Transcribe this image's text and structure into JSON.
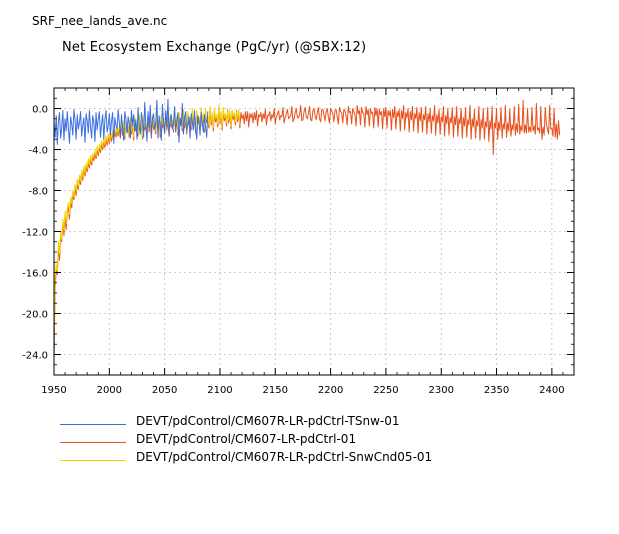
{
  "file_label": "SRF_nee_lands_ave.nc",
  "chart_data": {
    "type": "line",
    "title": "Net Ecosystem Exchange (PgC/yr) (@SBX:12)",
    "xlabel": "",
    "ylabel": "",
    "xlim": [
      1950,
      2420
    ],
    "ylim": [
      -26,
      2
    ],
    "x_ticks": [
      1950,
      2000,
      2050,
      2100,
      2150,
      2200,
      2250,
      2300,
      2350,
      2400
    ],
    "y_ticks": [
      0,
      -4,
      -8,
      -12,
      -16,
      -20,
      -24
    ],
    "x_tick_labels": [
      "1950",
      "2000",
      "2050",
      "2100",
      "2150",
      "2200",
      "2250",
      "2300",
      "2350",
      "2400"
    ],
    "y_tick_labels": [
      "0.0",
      "-4.0",
      "-8.0",
      "-12.0",
      "-16.0",
      "-20.0",
      "-24.0"
    ],
    "grid": true,
    "legend_position": "bottom-left",
    "series": [
      {
        "name": "DEVT/pdControl/CM607R-LR-pdCtrl-TSnw-01",
        "color": "#3b6fe0",
        "x_start": 1950,
        "values": [
          -1.3,
          -2.8,
          -0.7,
          -3.5,
          -1.2,
          -0.4,
          -2.9,
          -1.8,
          -0.2,
          -3.1,
          -1.0,
          -2.2,
          -0.3,
          -1.9,
          -3.4,
          -0.8,
          -1.5,
          -2.6,
          -0.1,
          -1.1,
          -3.0,
          -0.6,
          -2.0,
          -1.4,
          -0.3,
          -2.7,
          -1.6,
          -0.9,
          -3.3,
          -0.5,
          -1.2,
          -2.4,
          -0.2,
          -1.8,
          -2.9,
          -0.7,
          -1.3,
          -3.2,
          -0.4,
          -2.1,
          -1.0,
          -0.3,
          -2.8,
          -1.5,
          -0.6,
          -3.0,
          -1.1,
          -0.2,
          -2.3,
          -1.7,
          -0.5,
          -2.6,
          -1.2,
          -0.4,
          -3.4,
          -0.9,
          -1.6,
          -2.0,
          -0.1,
          -1.3,
          -2.7,
          -0.6,
          -1.9,
          -3.1,
          -0.3,
          -1.0,
          -2.4,
          -0.8,
          -1.5,
          -2.9,
          -0.2,
          -1.7,
          -0.6,
          -2.2,
          -1.1,
          -3.0,
          0.1,
          -1.8,
          -2.5,
          -0.4,
          -1.2,
          -2.8,
          0.6,
          -1.5,
          -3.2,
          -0.3,
          -1.9,
          0.3,
          -2.6,
          -1.0,
          -0.5,
          -2.1,
          -1.4,
          0.8,
          -2.9,
          -0.7,
          -1.6,
          -3.1,
          0.4,
          -1.3,
          -2.4,
          -0.2,
          -1.8,
          0.9,
          -2.7,
          -1.1,
          -0.6,
          -2.0,
          -1.5,
          0.2,
          -2.3,
          -1.2,
          -0.4,
          -3.3,
          -0.9,
          -1.7,
          0.5,
          -2.5,
          -1.0,
          -0.3,
          -2.2,
          -1.6,
          -0.8,
          -2.9,
          -0.5,
          -1.4,
          -2.1,
          -0.2,
          -1.9,
          -3.0,
          -0.7,
          -1.1,
          -2.6,
          -0.4,
          -1.5,
          -2.3,
          -0.6,
          -1.8,
          -2.8,
          -0.3
        ]
      },
      {
        "name": "DEVT/pdControl/CM607-LR-pdCtrl-01",
        "color": "#e8501c",
        "x_start": 1950,
        "values": [
          -24.5,
          -17.5,
          -15.8,
          -16.2,
          -13.5,
          -14.8,
          -12.6,
          -13.0,
          -11.2,
          -12.4,
          -10.5,
          -11.8,
          -10.2,
          -9.6,
          -10.8,
          -9.0,
          -9.7,
          -8.4,
          -8.9,
          -7.7,
          -8.5,
          -7.2,
          -7.9,
          -6.8,
          -7.4,
          -6.3,
          -7.0,
          -5.9,
          -6.6,
          -5.6,
          -6.2,
          -5.2,
          -5.8,
          -4.9,
          -5.5,
          -4.7,
          -5.1,
          -4.4,
          -4.9,
          -4.0,
          -4.6,
          -3.8,
          -4.3,
          -3.5,
          -4.0,
          -3.3,
          -3.8,
          -3.0,
          -3.6,
          -2.8,
          -3.4,
          -2.6,
          -3.2,
          -2.5,
          -3.0,
          -2.3,
          -2.8,
          -2.1,
          -2.7,
          -2.0,
          -2.9,
          -1.7,
          -2.6,
          -1.5,
          -3.0,
          -1.4,
          -2.4,
          -1.9,
          -2.8,
          -1.2,
          -2.5,
          -1.6,
          -3.1,
          -1.1,
          -2.2,
          -1.8,
          -2.7,
          -0.9,
          -2.4,
          -1.5,
          -3.0,
          -1.0,
          -2.1,
          -1.7,
          -2.6,
          -0.8,
          -2.3,
          -1.4,
          -2.9,
          -1.0,
          -2.0,
          -1.6,
          -2.5,
          -0.7,
          -2.2,
          -1.3,
          -2.8,
          -0.9,
          -1.9,
          -1.5,
          -2.4,
          -0.6,
          -2.1,
          -1.2,
          -2.7,
          -0.8,
          -1.8,
          -1.4,
          -2.3,
          -0.5,
          -2.0,
          -1.1,
          -2.6,
          -0.7,
          -1.7,
          -1.3,
          -2.2,
          -0.4,
          -1.9,
          -1.0,
          -2.5,
          -0.6,
          -1.6,
          -1.2,
          -2.1,
          -0.3,
          -1.8,
          -0.9,
          -2.4,
          -0.5,
          -1.5,
          -1.1,
          -2.0,
          -0.2,
          -1.7,
          -0.8,
          -2.3,
          -0.4,
          -1.4,
          -1.0,
          -1.9,
          -0.1,
          -1.6,
          -0.7,
          -2.2,
          -0.3,
          -1.3,
          -0.9,
          -1.8,
          0.0,
          -1.5,
          -0.6,
          -2.1,
          -0.2,
          -1.2,
          -0.8,
          -1.7,
          -0.1,
          -1.4,
          -0.5,
          -2.0,
          -0.3,
          -1.1,
          -0.7,
          -1.6,
          -0.2,
          -1.3,
          -0.4,
          -1.9,
          -0.4,
          -1.0,
          -0.6,
          -1.5,
          -0.3,
          -1.2,
          -0.3,
          -1.8,
          -0.5,
          -0.9,
          -0.5,
          -1.4,
          -0.4,
          -1.1,
          -0.2,
          -1.7,
          -0.6,
          -0.8,
          -0.4,
          -1.3,
          -0.5,
          -1.0,
          -0.1,
          -1.6,
          -0.7,
          -0.7,
          -0.3,
          -1.2,
          -0.6,
          -0.9,
          0.0,
          -1.5,
          -0.8,
          -0.6,
          -0.2,
          -1.1,
          -0.7,
          -0.8,
          0.1,
          -1.4,
          -0.9,
          -0.5,
          -0.1,
          -1.0,
          -0.8,
          -0.7,
          0.2,
          -1.3,
          -1.0,
          -0.4,
          0.0,
          -0.9,
          -0.9,
          -0.6,
          0.3,
          -1.2,
          -1.1,
          -0.3,
          0.1,
          -0.8,
          -1.0,
          -0.5,
          0.2,
          -1.1,
          -1.2,
          -0.2,
          0.0,
          -0.7,
          -1.1,
          -0.4,
          0.1,
          -1.0,
          -1.3,
          -0.1,
          -0.1,
          -0.6,
          -1.2,
          -0.3,
          0.0,
          -0.9,
          -1.4,
          0.0,
          -0.2,
          -0.5,
          -1.3,
          -0.2,
          -0.1,
          -0.8,
          -1.5,
          0.1,
          -0.3,
          -0.4,
          -1.4,
          -0.1,
          -0.2,
          -0.7,
          -1.6,
          0.2,
          -0.4,
          -0.3,
          -1.5,
          0.0,
          -0.3,
          -0.6,
          -1.7,
          0.3,
          -0.5,
          -0.2,
          -1.6,
          0.1,
          -0.4,
          -0.5,
          -1.8,
          0.2,
          -0.6,
          -0.1,
          -1.7,
          0.0,
          -0.5,
          -0.4,
          -1.9,
          0.1,
          -0.7,
          0.0,
          -1.8,
          -0.1,
          -0.6,
          -0.3,
          -2.0,
          0.0,
          -0.8,
          0.1,
          -1.9,
          -0.2,
          -0.7,
          -0.2,
          -2.1,
          -0.1,
          -0.9,
          0.2,
          -2.0,
          -0.3,
          -0.8,
          -0.1,
          -2.2,
          -0.2,
          -1.0,
          0.3,
          -2.1,
          -0.4,
          -0.9,
          0.0,
          -2.3,
          -0.3,
          -1.1,
          0.2,
          -2.2,
          -0.5,
          -1.0,
          0.1,
          -2.4,
          -0.4,
          -1.2,
          0.1,
          -2.3,
          -0.6,
          -1.1,
          0.2,
          -2.5,
          -0.5,
          -1.3,
          0.0,
          -2.4,
          -0.7,
          -1.2,
          0.3,
          -2.6,
          -0.6,
          -1.4,
          -0.1,
          -2.5,
          -0.8,
          -1.3,
          0.2,
          -2.7,
          -0.7,
          -1.5,
          0.0,
          -2.6,
          -0.9,
          -1.4,
          0.1,
          -2.8,
          -0.8,
          -1.6,
          0.2,
          -2.7,
          -1.0,
          -1.5,
          0.0,
          -2.9,
          -0.9,
          -1.7,
          0.1,
          -2.8,
          -1.1,
          -1.6,
          0.3,
          -3.0,
          -1.0,
          -1.8,
          -0.1,
          -2.9,
          -1.2,
          -1.7,
          0.2,
          -3.1,
          -1.1,
          -1.9,
          0.0,
          -3.0,
          -1.3,
          -1.8,
          0.1,
          -3.2,
          -1.2,
          -2.0,
          0.2,
          -4.5,
          -1.4,
          -1.9,
          0.0,
          -3.0,
          -1.3,
          -2.1,
          0.1,
          -2.9,
          -1.5,
          -2.0,
          0.3,
          -2.8,
          -1.4,
          -2.2,
          -0.1,
          -2.7,
          -1.6,
          -2.1,
          0.2,
          -2.6,
          -1.5,
          -2.3,
          0.4,
          -2.5,
          -1.7,
          -2.2,
          0.8,
          -2.4,
          -1.6,
          -2.4,
          0.0,
          -2.3,
          -1.8,
          -2.3,
          0.1,
          -2.2,
          -1.7,
          -2.5,
          0.5,
          -2.1,
          -1.9,
          -2.4,
          0.2,
          -3.0,
          -1.8,
          -2.6,
          0.1,
          -1.5,
          -2.0,
          -2.5,
          0.3,
          -2.0,
          -1.9,
          -2.7,
          0.0,
          -2.8,
          -1.5,
          -3.0,
          -1.2,
          -2.6
        ]
      },
      {
        "name": "DEVT/pdControl/CM607R-LR-pdCtrl-SnwCnd05-01",
        "color": "#f2d200",
        "x_start": 1950,
        "values": [
          -23.0,
          -16.5,
          -15.2,
          -15.9,
          -13.0,
          -14.2,
          -12.0,
          -12.8,
          -10.8,
          -11.9,
          -10.0,
          -11.2,
          -9.8,
          -9.2,
          -10.3,
          -8.6,
          -9.3,
          -8.0,
          -8.6,
          -7.4,
          -8.1,
          -6.9,
          -7.6,
          -6.5,
          -7.1,
          -6.0,
          -6.7,
          -5.6,
          -6.3,
          -5.3,
          -5.9,
          -4.9,
          -5.5,
          -4.6,
          -5.2,
          -4.4,
          -4.8,
          -4.1,
          -4.6,
          -3.7,
          -4.3,
          -3.5,
          -4.0,
          -3.2,
          -3.7,
          -3.0,
          -3.5,
          -2.7,
          -3.3,
          -2.5,
          -3.1,
          -2.3,
          -2.9,
          -2.2,
          -2.7,
          -2.0,
          -2.5,
          -1.8,
          -2.4,
          -1.7,
          -2.6,
          -1.4,
          -2.3,
          -1.2,
          -2.7,
          -1.1,
          -2.1,
          -1.6,
          -2.5,
          -0.9,
          -2.2,
          -1.3,
          -2.8,
          -0.8,
          -1.9,
          -1.5,
          -2.4,
          -0.6,
          -2.1,
          -1.2,
          -2.7,
          -0.7,
          -1.8,
          -1.4,
          -2.3,
          -0.5,
          -2.0,
          -1.1,
          -2.6,
          -0.7,
          -1.7,
          -1.3,
          -2.2,
          -0.4,
          -1.9,
          -1.0,
          -2.5,
          -0.6,
          -1.6,
          -1.2,
          -2.1,
          -0.3,
          -1.8,
          -0.9,
          -2.4,
          -0.5,
          -1.5,
          -1.1,
          -2.0,
          -0.2,
          -1.7,
          -0.8,
          -2.3,
          -0.4,
          -1.4,
          -1.0,
          -1.9,
          -0.1,
          -1.6,
          -0.7,
          -2.2,
          -0.3,
          -1.3,
          -0.9,
          -1.8,
          0.0,
          -1.5,
          -0.6,
          -2.1,
          -0.2,
          -1.2,
          -0.8,
          -1.7,
          0.1,
          -1.4,
          -0.5,
          -2.0,
          -0.1,
          -1.1,
          -0.7,
          -1.6,
          0.2,
          -1.3,
          -0.4,
          -1.9,
          0.0,
          -1.0,
          -0.6,
          -1.5,
          0.3,
          -1.2,
          -0.3,
          -1.8,
          0.1,
          -0.9,
          -0.5,
          -1.4,
          -0.2,
          -1.1,
          -0.2,
          -1.7,
          -0.1,
          -0.8,
          -0.4,
          -1.3,
          -0.3,
          -1.0,
          -0.1,
          -1.6
        ]
      }
    ]
  }
}
